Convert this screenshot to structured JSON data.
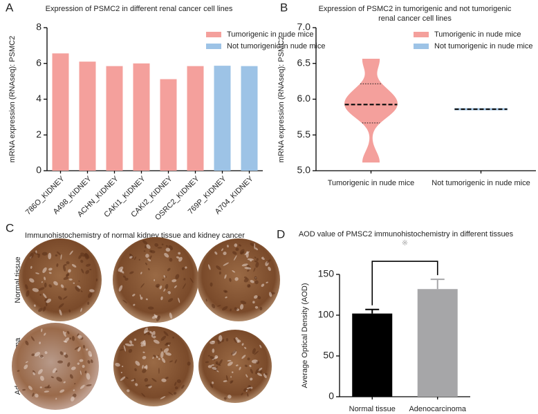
{
  "chart_data": [
    {
      "type": "bar",
      "panel_letter": "A",
      "title": [
        "Expression of PSMC2 in different renal cancer cell lines"
      ],
      "ylabel": "mRNA expression (RNAseq): PSMC2",
      "categories": [
        "786O_KIDNEY",
        "A498_KIDNEY",
        "ACHN_KIDNEY",
        "CAKI1_KIDNEY",
        "CAKI2_KIDNEY",
        "OSRC2_KIDNEY",
        "769P_KIDNEY",
        "A704_KIDNEY"
      ],
      "series": [
        {
          "name": "Tumorigenic in nude mice",
          "color": "#f4a09c",
          "values": [
            6.56,
            6.1,
            5.85,
            6.0,
            5.12,
            5.85,
            null,
            null
          ]
        },
        {
          "name": "Not tumorigenic in nude mice",
          "color": "#9dc3e6",
          "values": [
            null,
            null,
            null,
            null,
            null,
            null,
            5.87,
            5.85
          ]
        }
      ],
      "ylim": [
        0,
        8
      ],
      "yticks": [
        0,
        2,
        4,
        6,
        8
      ]
    },
    {
      "type": "violin",
      "panel_letter": "B",
      "title": [
        "Expression of PSMC2 in tumorigenic and not tumorigenic",
        "renal cancer cell lines"
      ],
      "ylabel": "mRNA expression (RNAseq): PSMC2",
      "categories": [
        "Tumorigenic in nude mice",
        "Not tumorigenic in nude mice"
      ],
      "series": [
        {
          "name": "Tumorigenic in nude mice",
          "color": "#f4a09c",
          "values": [
            6.56,
            6.1,
            5.85,
            6.0,
            5.12,
            5.85
          ]
        },
        {
          "name": "Not tumorigenic in nude mice",
          "color": "#9dc3e6",
          "values": [
            5.87,
            5.85
          ]
        }
      ],
      "ylim": [
        5,
        7
      ],
      "yticks": [
        {
          "value": 5,
          "label": "5.0"
        },
        {
          "value": 5.5,
          "label": "5.5"
        },
        {
          "value": 6,
          "label": "6.0"
        },
        {
          "value": 6.5,
          "label": "6.5"
        },
        {
          "value": 7,
          "label": "7.0"
        }
      ]
    },
    {
      "type": "errorbar",
      "panel_letter": "D",
      "title": [
        "AOD value of PMSC2 immunohistochemistry in different tissues"
      ],
      "ylabel": "Average Optical Density (AOD)",
      "categories": [
        "Normal tissue",
        "Adenocarcinoma"
      ],
      "values": [
        102,
        132
      ],
      "errors": [
        5,
        12
      ],
      "colors": [
        "#000000",
        "#a6a6a8"
      ],
      "annotation": "※",
      "ylim": [
        0,
        150
      ],
      "yticks": [
        0,
        50,
        100,
        150
      ]
    }
  ],
  "image_panel": {
    "panel_letter": "C",
    "title": "Immunohistochemistry of normal kidney tissue and kidney cancer",
    "row_labels": [
      "Normal tissue",
      "Adenocarcinoma"
    ]
  }
}
